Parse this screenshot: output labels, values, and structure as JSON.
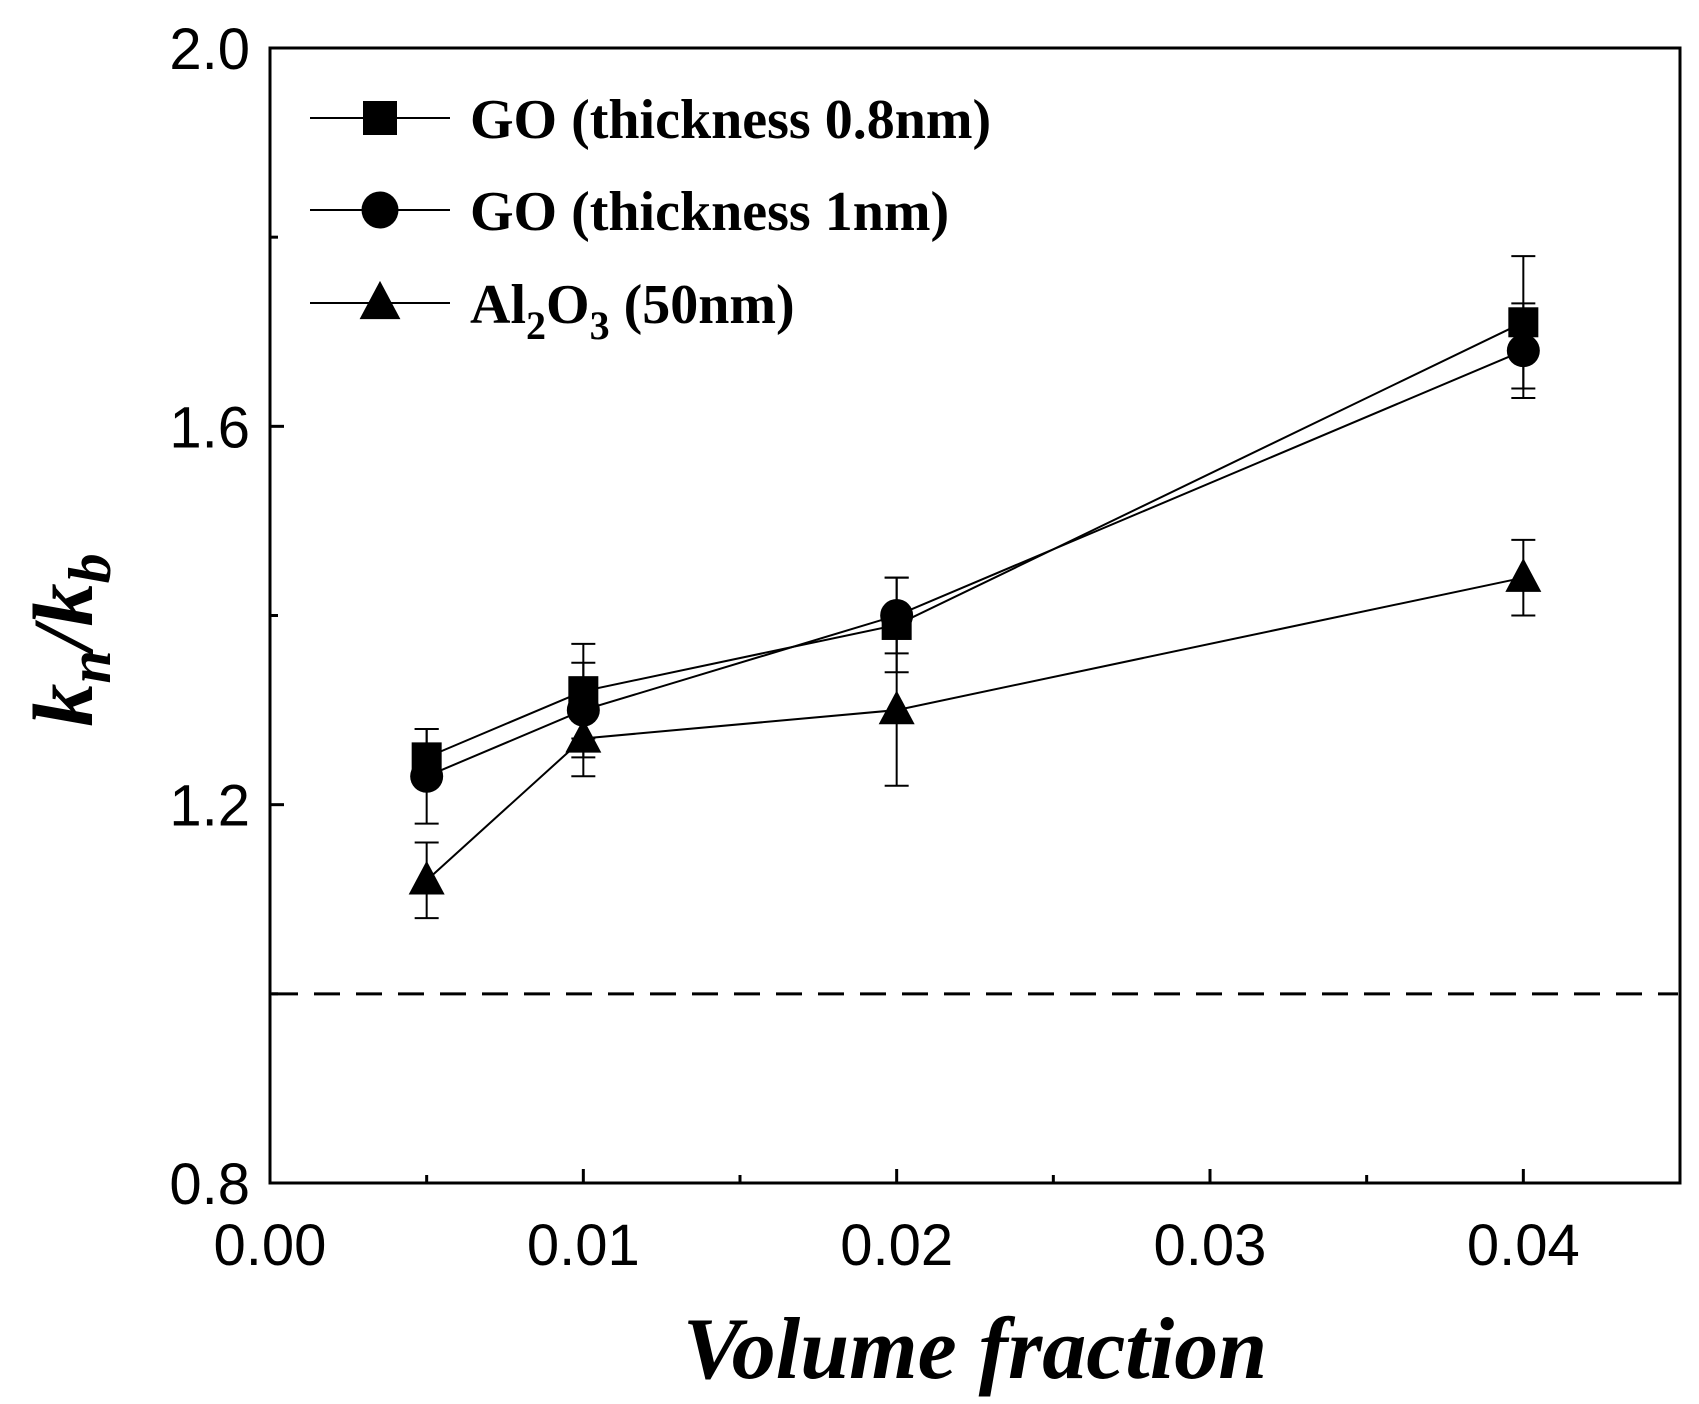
{
  "chart_data": {
    "type": "line",
    "x": [
      0.005,
      0.01,
      0.02,
      0.04
    ],
    "xlim": [
      0.0,
      0.045
    ],
    "ylim": [
      0.8,
      2.0
    ],
    "xticks": [
      "0.00",
      "0.01",
      "0.02",
      "0.03",
      "0.04"
    ],
    "yticks": [
      "0.8",
      "1.2",
      "1.6",
      "2.0"
    ],
    "xlabel": "Volume fraction",
    "ylabel": {
      "k1": "k",
      "sub1": "n",
      "slash": "/",
      "k2": "k",
      "sub2": "b"
    },
    "reference_line": {
      "y": 1.0,
      "style": "dashed"
    },
    "grid": false,
    "legend_position": "top-left",
    "series": [
      {
        "name_parts": {
          "main": "GO (thickness 0.8nm)"
        },
        "marker": "square",
        "values": [
          1.25,
          1.32,
          1.39,
          1.71
        ],
        "errors": [
          0.03,
          0.05,
          0.05,
          0.07
        ]
      },
      {
        "name_parts": {
          "main": "GO (thickness 1nm)"
        },
        "marker": "circle",
        "values": [
          1.23,
          1.3,
          1.4,
          1.68
        ],
        "errors": [
          0.05,
          0.05,
          0.04,
          0.05
        ]
      },
      {
        "name_parts": {
          "pre": "Al",
          "sub1": "2",
          "mid": "O",
          "sub2": "3",
          "post": " (50nm)"
        },
        "marker": "triangle",
        "values": [
          1.12,
          1.27,
          1.3,
          1.44
        ],
        "errors": [
          0.04,
          0.04,
          0.08,
          0.04
        ]
      }
    ]
  }
}
